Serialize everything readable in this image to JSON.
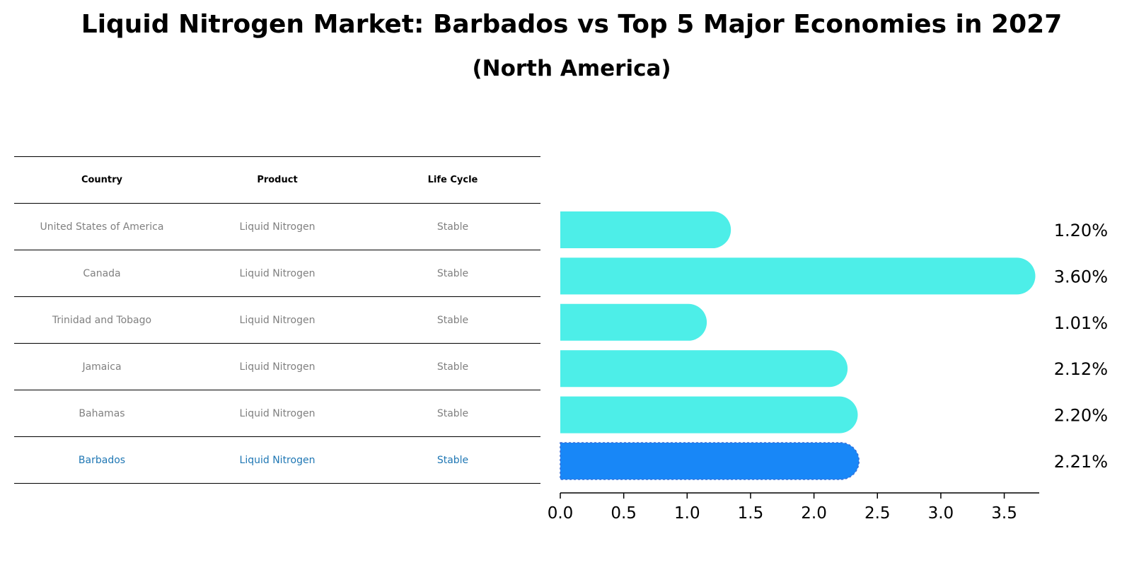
{
  "title": "Liquid Nitrogen Market: Barbados vs Top 5 Major Economies in 2027",
  "subtitle": "(North America)",
  "table": {
    "headers": [
      "Country",
      "Product",
      "Life Cycle"
    ],
    "rows": [
      [
        "United States of America",
        "Liquid Nitrogen",
        "Stable"
      ],
      [
        "Canada",
        "Liquid Nitrogen",
        "Stable"
      ],
      [
        "Trinidad and Tobago",
        "Liquid Nitrogen",
        "Stable"
      ],
      [
        "Jamaica",
        "Liquid Nitrogen",
        "Stable"
      ],
      [
        "Bahamas",
        "Liquid Nitrogen",
        "Stable"
      ],
      [
        "Barbados",
        "Liquid Nitrogen",
        "Stable"
      ]
    ]
  },
  "colors": {
    "bar": "#4deee8",
    "highlight": "#1887f7",
    "highlight_text": "#1f77b4",
    "table_text": "#808080"
  },
  "chart_data": {
    "type": "bar",
    "orientation": "horizontal",
    "categories": [
      "United States of America",
      "Canada",
      "Trinidad and Tobago",
      "Jamaica",
      "Bahamas",
      "Barbados"
    ],
    "values": [
      1.2,
      3.6,
      1.01,
      2.12,
      2.2,
      2.21
    ],
    "data_labels": [
      "1.20%",
      "3.60%",
      "1.01%",
      "2.12%",
      "2.20%",
      "2.21%"
    ],
    "highlight_category": "Barbados",
    "xlim": [
      0,
      3.78
    ],
    "x_ticks": [
      0.0,
      0.5,
      1.0,
      1.5,
      2.0,
      2.5,
      3.0,
      3.5
    ],
    "x_tick_labels": [
      "0.0",
      "0.5",
      "1.0",
      "1.5",
      "2.0",
      "2.5",
      "3.0",
      "3.5"
    ],
    "grid": false
  }
}
